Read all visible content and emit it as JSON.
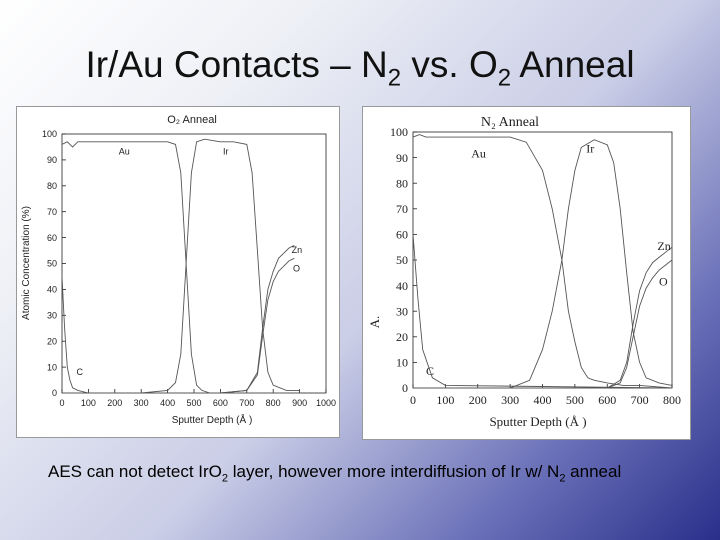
{
  "slide": {
    "title_pre": "Ir/Au Contacts – N",
    "title_sub1": "2",
    "title_mid": " vs. O",
    "title_sub2": "2",
    "title_post": " Anneal",
    "caption_pre": "AES can not detect IrO",
    "caption_sub1": "2",
    "caption_mid": " layer, however more interdiffusion of Ir w/ N",
    "caption_sub2": "2",
    "caption_post": " anneal"
  },
  "chart_data": [
    {
      "type": "line",
      "title": "O₂ Anneal",
      "xlabel": "Sputter Depth (Å )",
      "ylabel": "Atomic Concentration (%)",
      "xlim": [
        0,
        1000
      ],
      "ylim": [
        0,
        100
      ],
      "xticks": [
        0,
        100,
        200,
        300,
        400,
        500,
        600,
        700,
        800,
        900,
        1000
      ],
      "yticks": [
        0,
        10,
        20,
        30,
        40,
        50,
        60,
        70,
        80,
        90,
        100
      ],
      "series": [
        {
          "name": "Au",
          "x": [
            0,
            20,
            40,
            60,
            100,
            200,
            300,
            400,
            430,
            450,
            470,
            490,
            510,
            530,
            560
          ],
          "y": [
            96,
            97,
            95,
            97,
            97,
            97,
            97,
            97,
            96,
            85,
            50,
            15,
            3,
            1,
            0
          ]
        },
        {
          "name": "Ir",
          "x": [
            0,
            300,
            400,
            430,
            450,
            470,
            490,
            510,
            540,
            600,
            650,
            700,
            720,
            740,
            760,
            780,
            800,
            850,
            900
          ],
          "y": [
            0,
            0,
            1,
            4,
            15,
            50,
            85,
            97,
            98,
            97,
            97,
            96,
            85,
            55,
            25,
            8,
            3,
            1,
            1
          ]
        },
        {
          "name": "Zn",
          "x": [
            0,
            600,
            700,
            740,
            760,
            780,
            800,
            820,
            840,
            860,
            880
          ],
          "y": [
            0,
            0,
            1,
            8,
            25,
            40,
            47,
            52,
            54,
            56,
            57
          ]
        },
        {
          "name": "O",
          "x": [
            0,
            600,
            700,
            740,
            760,
            780,
            800,
            820,
            840,
            860,
            880
          ],
          "y": [
            0,
            0,
            1,
            7,
            22,
            36,
            43,
            47,
            49,
            51,
            52
          ]
        },
        {
          "name": "C",
          "x": [
            0,
            10,
            20,
            30,
            40,
            60,
            100,
            900
          ],
          "y": [
            45,
            25,
            10,
            5,
            2,
            1,
            0,
            0
          ]
        }
      ]
    },
    {
      "type": "line",
      "title": "N₂ Anneal",
      "xlabel": "Sputter Depth (Å )",
      "ylabel": "A.",
      "xlim": [
        0,
        800
      ],
      "ylim": [
        0,
        100
      ],
      "xticks": [
        0,
        100,
        200,
        300,
        400,
        500,
        600,
        700,
        800
      ],
      "yticks": [
        0,
        10,
        20,
        30,
        40,
        50,
        60,
        70,
        80,
        90,
        100
      ],
      "series": [
        {
          "name": "Au",
          "x": [
            0,
            20,
            40,
            100,
            200,
            300,
            350,
            400,
            430,
            460,
            480,
            500,
            520,
            540,
            560,
            600,
            650,
            700,
            800
          ],
          "y": [
            98,
            99,
            98,
            98,
            98,
            98,
            96,
            85,
            70,
            50,
            30,
            18,
            8,
            4,
            3,
            2,
            1,
            1,
            0
          ]
        },
        {
          "name": "Ir",
          "x": [
            0,
            300,
            360,
            400,
            430,
            460,
            480,
            500,
            520,
            560,
            600,
            620,
            640,
            660,
            680,
            700,
            720,
            760,
            800
          ],
          "y": [
            0,
            0,
            3,
            15,
            30,
            50,
            70,
            85,
            94,
            97,
            95,
            88,
            70,
            45,
            22,
            10,
            4,
            2,
            1
          ]
        },
        {
          "name": "Zn",
          "x": [
            0,
            600,
            640,
            660,
            680,
            700,
            720,
            740,
            760,
            780,
            800
          ],
          "y": [
            0,
            0,
            3,
            10,
            25,
            38,
            45,
            49,
            51,
            53,
            55
          ]
        },
        {
          "name": "O",
          "x": [
            0,
            600,
            640,
            660,
            680,
            700,
            720,
            740,
            760,
            780,
            800
          ],
          "y": [
            0,
            0,
            2,
            8,
            20,
            32,
            39,
            43,
            46,
            48,
            50
          ]
        },
        {
          "name": "C",
          "x": [
            0,
            15,
            30,
            60,
            100,
            800
          ],
          "y": [
            60,
            35,
            15,
            4,
            1,
            0
          ]
        }
      ]
    }
  ]
}
